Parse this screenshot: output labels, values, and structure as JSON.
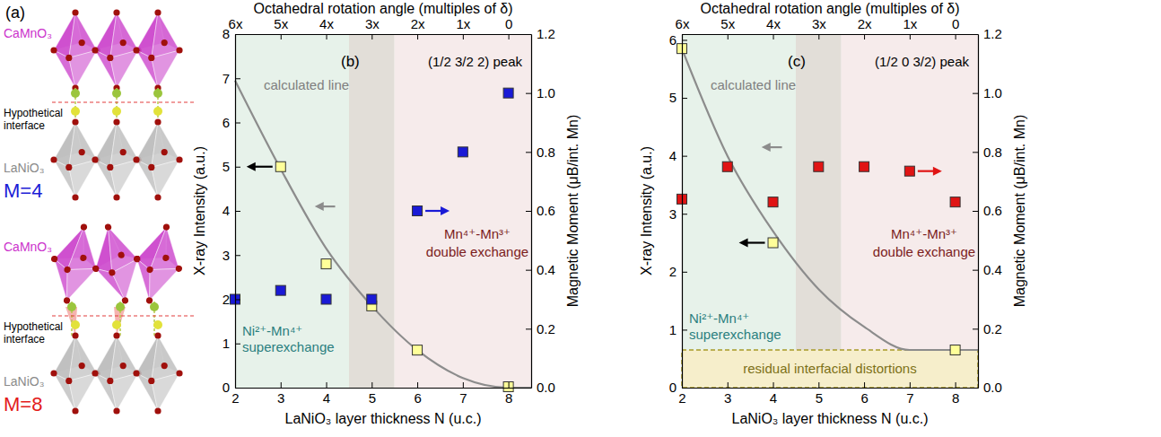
{
  "diagram": {
    "panel_label": "(a)",
    "groups": [
      {
        "top_layer": "CaMnO₃",
        "interface": "Hypothetical interface",
        "bottom_layer": "LaNiO₃",
        "label": "M=4"
      },
      {
        "top_layer": "CaMnO₃",
        "interface": "Hypothetical interface",
        "bottom_layer": "LaNiO₃",
        "label": "M=8"
      }
    ]
  },
  "chart_data": [
    {
      "type": "scatter",
      "panel_label": "(b)",
      "title": "(1/2 3/2 2) peak",
      "x_label": "LaNiO₃ layer thickness N (u.c.)",
      "x2_label": "Octahedral rotation angle (multiples of δ)",
      "y_label": "X-ray Intensity (a.u.)",
      "y2_label": "Magnetic Moment (μB/int. Mn)",
      "xlim": [
        2,
        8.5
      ],
      "xticks": [
        2,
        3,
        4,
        5,
        6,
        7,
        8
      ],
      "x2ticks": [
        {
          "value": 2,
          "label": "6x"
        },
        {
          "value": 3,
          "label": "5x"
        },
        {
          "value": 4,
          "label": "4x"
        },
        {
          "value": 5,
          "label": "3x"
        },
        {
          "value": 6,
          "label": "2x"
        },
        {
          "value": 7,
          "label": "1x"
        },
        {
          "value": 8,
          "label": "0"
        }
      ],
      "ylim": [
        0,
        8
      ],
      "yticks": [
        0,
        1,
        2,
        3,
        4,
        5,
        6,
        7,
        8
      ],
      "y2lim": [
        0,
        1.2
      ],
      "y2ticks": [
        {
          "value": 0,
          "label": "0.0"
        },
        0.2,
        0.4,
        0.6,
        0.8,
        {
          "value": 1,
          "label": "1.0"
        },
        1.2
      ],
      "grid": false,
      "regions": [
        {
          "from": 2,
          "to": 4.5,
          "color": "#e7f2ea",
          "label": "Ni²⁺-Mn⁴⁺ superexchange"
        },
        {
          "from": 4.5,
          "to": 5.5,
          "color": "#e2ded8"
        },
        {
          "from": 5.5,
          "to": 8.5,
          "color": "#f6ebeb",
          "label": "Mn⁴⁺-Mn³⁺ double exchange"
        }
      ],
      "series": [
        {
          "name": "calculated line",
          "type": "line",
          "line_style": "solid",
          "color": "#8c8c8c",
          "x": [
            2,
            3,
            4,
            5,
            6,
            7,
            8,
            8.5
          ],
          "values": [
            6.95,
            4.95,
            3.15,
            1.85,
            0.85,
            0.22,
            0,
            0
          ]
        },
        {
          "type": "scatter",
          "marker": "square",
          "color": "#ffff99",
          "x": [
            3,
            4,
            5,
            6,
            8
          ],
          "values": [
            5.0,
            2.8,
            1.85,
            0.85,
            0.02
          ]
        },
        {
          "type": "scatter",
          "marker": "square",
          "color": "#1a1ad6",
          "axis": "y2",
          "x": [
            2,
            3,
            4,
            5,
            6,
            7,
            8
          ],
          "values": [
            0.3,
            0.33,
            0.3,
            0.3,
            0.6,
            0.8,
            1.0
          ]
        }
      ]
    },
    {
      "type": "scatter",
      "panel_label": "(c)",
      "title": "(1/2 0 3/2) peak",
      "x_label": "LaNiO₃ layer thickness N (u.c.)",
      "x2_label": "Octahedral rotation angle (multiples of δ)",
      "y_label": "X-ray Intensity (a.u.)",
      "y2_label": "Magnetic Moment (μB/int. Mn)",
      "xlim": [
        2,
        8.5
      ],
      "xticks": [
        2,
        3,
        4,
        5,
        6,
        7,
        8
      ],
      "x2ticks": [
        {
          "value": 2,
          "label": "6x"
        },
        {
          "value": 3,
          "label": "5x"
        },
        {
          "value": 4,
          "label": "4x"
        },
        {
          "value": 5,
          "label": "3x"
        },
        {
          "value": 6,
          "label": "2x"
        },
        {
          "value": 7,
          "label": "1x"
        },
        {
          "value": 8,
          "label": "0"
        }
      ],
      "ylim": [
        0,
        6.1
      ],
      "yticks": [
        0,
        1,
        2,
        3,
        4,
        5,
        6
      ],
      "y2lim": [
        0,
        1.2
      ],
      "y2ticks": [
        {
          "value": 0,
          "label": "0.0"
        },
        0.2,
        0.4,
        0.6,
        0.8,
        {
          "value": 1,
          "label": "1.0"
        },
        1.2
      ],
      "grid": false,
      "regions": [
        {
          "from": 2,
          "to": 4.5,
          "color": "#e7f2ea",
          "label": "Ni²⁺-Mn⁴⁺ superexchange"
        },
        {
          "from": 4.5,
          "to": 5.5,
          "color": "#e2ded8"
        },
        {
          "from": 5.5,
          "to": 8.5,
          "color": "#f6ebeb",
          "label": "Mn⁴⁺-Mn³⁺ double exchange"
        }
      ],
      "bands": [
        {
          "from": 0,
          "to": 0.65,
          "color": "#f6eecb",
          "label": "residual interfacial distortions"
        }
      ],
      "series": [
        {
          "name": "calculated line",
          "type": "line",
          "line_style": "solid",
          "color": "#8c8c8c",
          "x": [
            2,
            3,
            4,
            5,
            6,
            7,
            8,
            8.5
          ],
          "values": [
            5.85,
            4.0,
            2.7,
            1.7,
            1.05,
            0.65,
            0.65,
            0.65
          ]
        },
        {
          "type": "scatter",
          "marker": "square",
          "color": "#ffff99",
          "x": [
            2,
            4,
            8
          ],
          "values": [
            5.85,
            2.5,
            0.65
          ]
        },
        {
          "type": "scatter",
          "marker": "square",
          "color": "#e01414",
          "axis": "y2",
          "x": [
            2,
            3,
            4,
            5,
            6,
            7,
            8
          ],
          "values": [
            0.64,
            0.75,
            0.63,
            0.75,
            0.75,
            0.735,
            0.63
          ]
        }
      ]
    }
  ]
}
